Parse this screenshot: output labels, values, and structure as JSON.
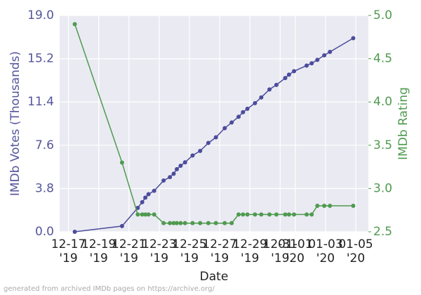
{
  "chart_data": {
    "type": "line",
    "x_label": "Date",
    "y_label": "IMDb Votes (Thousands)",
    "y2_label": "IMDb Rating",
    "footnote": "generated from archived IMDb pages on https://archive.org/",
    "grid": true,
    "x": [
      "2019-12-17T10:00",
      "2019-12-20T13:00",
      "2019-12-21T14:00",
      "2019-12-21T21:00",
      "2019-12-22T02:00",
      "2019-12-22T07:00",
      "2019-12-22T16:00",
      "2019-12-23T07:00",
      "2019-12-23T17:00",
      "2019-12-23T23:00",
      "2019-12-24T04:00",
      "2019-12-24T10:00",
      "2019-12-24T17:00",
      "2019-12-25T05:00",
      "2019-12-25T17:00",
      "2019-12-26T06:00",
      "2019-12-26T18:00",
      "2019-12-27T08:00",
      "2019-12-27T19:00",
      "2019-12-28T06:00",
      "2019-12-28T13:00",
      "2019-12-28T20:00",
      "2019-12-29T08:00",
      "2019-12-29T18:00",
      "2019-12-30T07:00",
      "2019-12-30T18:00",
      "2019-12-31T08:00",
      "2019-12-31T14:00",
      "2019-12-31T22:00",
      "2020-01-01T18:00",
      "2020-01-02T02:00",
      "2020-01-02T11:00",
      "2020-01-02T22:00",
      "2020-01-03T07:00",
      "2020-01-04T20:00"
    ],
    "series": [
      {
        "name": "IMDb Votes (Thousands)",
        "color": "#4c4c9c",
        "values": [
          0.0,
          0.5,
          2.1,
          2.6,
          3.0,
          3.3,
          3.6,
          4.5,
          4.8,
          5.1,
          5.5,
          5.8,
          6.1,
          6.7,
          7.1,
          7.8,
          8.3,
          9.1,
          9.6,
          10.1,
          10.5,
          10.8,
          11.3,
          11.8,
          12.5,
          12.9,
          13.5,
          13.8,
          14.1,
          14.6,
          14.8,
          15.1,
          15.5,
          15.8,
          17.0
        ]
      },
      {
        "name": "IMDb Rating",
        "color": "#4f9a4f",
        "axis": "y2",
        "values": [
          4.9,
          3.3,
          2.7,
          2.7,
          2.7,
          2.7,
          2.7,
          2.6,
          2.6,
          2.6,
          2.6,
          2.6,
          2.6,
          2.6,
          2.6,
          2.6,
          2.6,
          2.6,
          2.6,
          2.7,
          2.7,
          2.7,
          2.7,
          2.7,
          2.7,
          2.7,
          2.7,
          2.7,
          2.7,
          2.7,
          2.7,
          2.8,
          2.8,
          2.8,
          2.8
        ]
      }
    ],
    "xlim": [
      "2019-12-16T10:00",
      "2020-01-05T20:00"
    ],
    "xticks": [
      {
        "value": "2019-12-17T00:00",
        "label": [
          "12-17",
          "'19"
        ]
      },
      {
        "value": "2019-12-19T00:00",
        "label": [
          "12-19",
          "'19"
        ]
      },
      {
        "value": "2019-12-21T00:00",
        "label": [
          "12-21",
          "'19"
        ]
      },
      {
        "value": "2019-12-23T00:00",
        "label": [
          "12-23",
          "'19"
        ]
      },
      {
        "value": "2019-12-25T00:00",
        "label": [
          "12-25",
          "'19"
        ]
      },
      {
        "value": "2019-12-27T00:00",
        "label": [
          "12-27",
          "'19"
        ]
      },
      {
        "value": "2019-12-29T00:00",
        "label": [
          "12-29",
          "'19"
        ]
      },
      {
        "value": "2019-12-31T00:00",
        "label": [
          "12-31",
          "'19"
        ]
      },
      {
        "value": "2020-01-01T00:00",
        "label": [
          "01-01",
          "'20"
        ]
      },
      {
        "value": "2020-01-03T00:00",
        "label": [
          "01-03",
          "'20"
        ]
      },
      {
        "value": "2020-01-05T00:00",
        "label": [
          "01-05",
          "'20"
        ]
      }
    ],
    "ylim": [
      0,
      19
    ],
    "yticks": [
      {
        "value": 0,
        "label": "0.0"
      },
      3.8,
      7.6,
      11.4,
      15.2,
      {
        "value": 19,
        "label": "19.0"
      }
    ],
    "y2lim": [
      2.5,
      5
    ],
    "y2ticks": [
      2.5,
      {
        "value": 3,
        "label": "3.0"
      },
      3.5,
      {
        "value": 4,
        "label": "4.0"
      },
      4.5,
      {
        "value": 5,
        "label": "5.0"
      }
    ]
  }
}
